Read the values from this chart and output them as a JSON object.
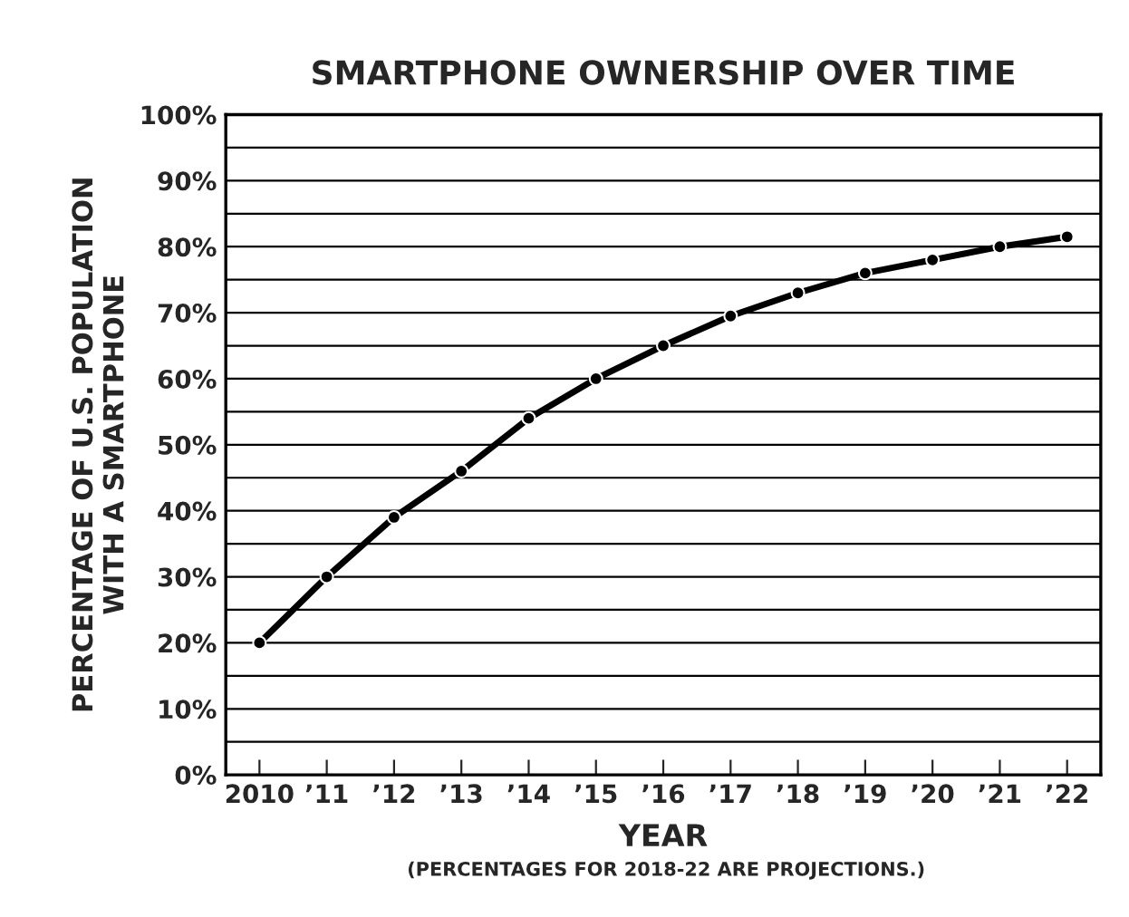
{
  "chart_data": {
    "type": "line",
    "title": "SMARTPHONE OWNERSHIP OVER TIME",
    "xlabel": "YEAR",
    "ylabel": "PERCENTAGE OF U.S. POPULATION\nWITH A SMARTPHONE",
    "annotations": [
      "(PERCENTAGES FOR 2018-22 ARE PROJECTIONS.)"
    ],
    "categories": [
      "2010",
      "’11",
      "’12",
      "’13",
      "’14",
      "’15",
      "’16",
      "’17",
      "’18",
      "’19",
      "’20",
      "’21",
      "’22"
    ],
    "series": [
      {
        "color": "#000000",
        "values": [
          20,
          30,
          39,
          46,
          54,
          60,
          65,
          69.5,
          73,
          76,
          78,
          80,
          81.5
        ]
      }
    ],
    "ylim": [
      0,
      100
    ],
    "yticks": [
      {
        "value": 0,
        "label": "0%"
      },
      {
        "value": 5,
        "label": null
      },
      {
        "value": 10,
        "label": "10%"
      },
      {
        "value": 15,
        "label": null
      },
      {
        "value": 20,
        "label": "20%"
      },
      {
        "value": 25,
        "label": null
      },
      {
        "value": 30,
        "label": "30%"
      },
      {
        "value": 35,
        "label": null
      },
      {
        "value": 40,
        "label": "40%"
      },
      {
        "value": 45,
        "label": null
      },
      {
        "value": 50,
        "label": "50%"
      },
      {
        "value": 55,
        "label": null
      },
      {
        "value": 60,
        "label": "60%"
      },
      {
        "value": 65,
        "label": null
      },
      {
        "value": 70,
        "label": "70%"
      },
      {
        "value": 75,
        "label": null
      },
      {
        "value": 80,
        "label": "80%"
      },
      {
        "value": 85,
        "label": null
      },
      {
        "value": 90,
        "label": "90%"
      },
      {
        "value": 95,
        "label": null
      },
      {
        "value": 100,
        "label": "100%"
      }
    ],
    "grid": "y",
    "marker": "circle",
    "line_style": "solid",
    "legend": false
  }
}
